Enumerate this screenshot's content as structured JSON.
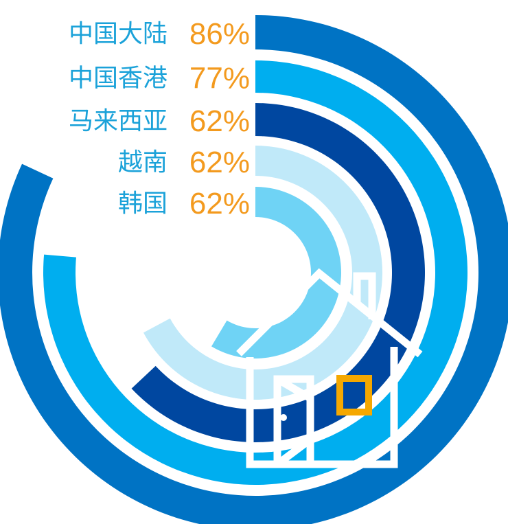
{
  "chart_data": {
    "type": "radial-bar",
    "categories": [
      "中国大陆",
      "中国香港",
      "马来西亚",
      "越南",
      "韩国"
    ],
    "values": [
      86,
      77,
      62,
      62,
      62
    ],
    "value_labels": [
      "86%",
      "77%",
      "62%",
      "62%",
      "62%"
    ],
    "colors": [
      "#0073c4",
      "#00aeef",
      "#0047a0",
      "#c0e9f9",
      "#6fd3f5"
    ],
    "label_color": "#1ba2d9",
    "value_color": "#f39a1e",
    "legend": "left-of-bars"
  },
  "decoration": {
    "icon": "house-icon",
    "window_color": "#f5a800"
  }
}
